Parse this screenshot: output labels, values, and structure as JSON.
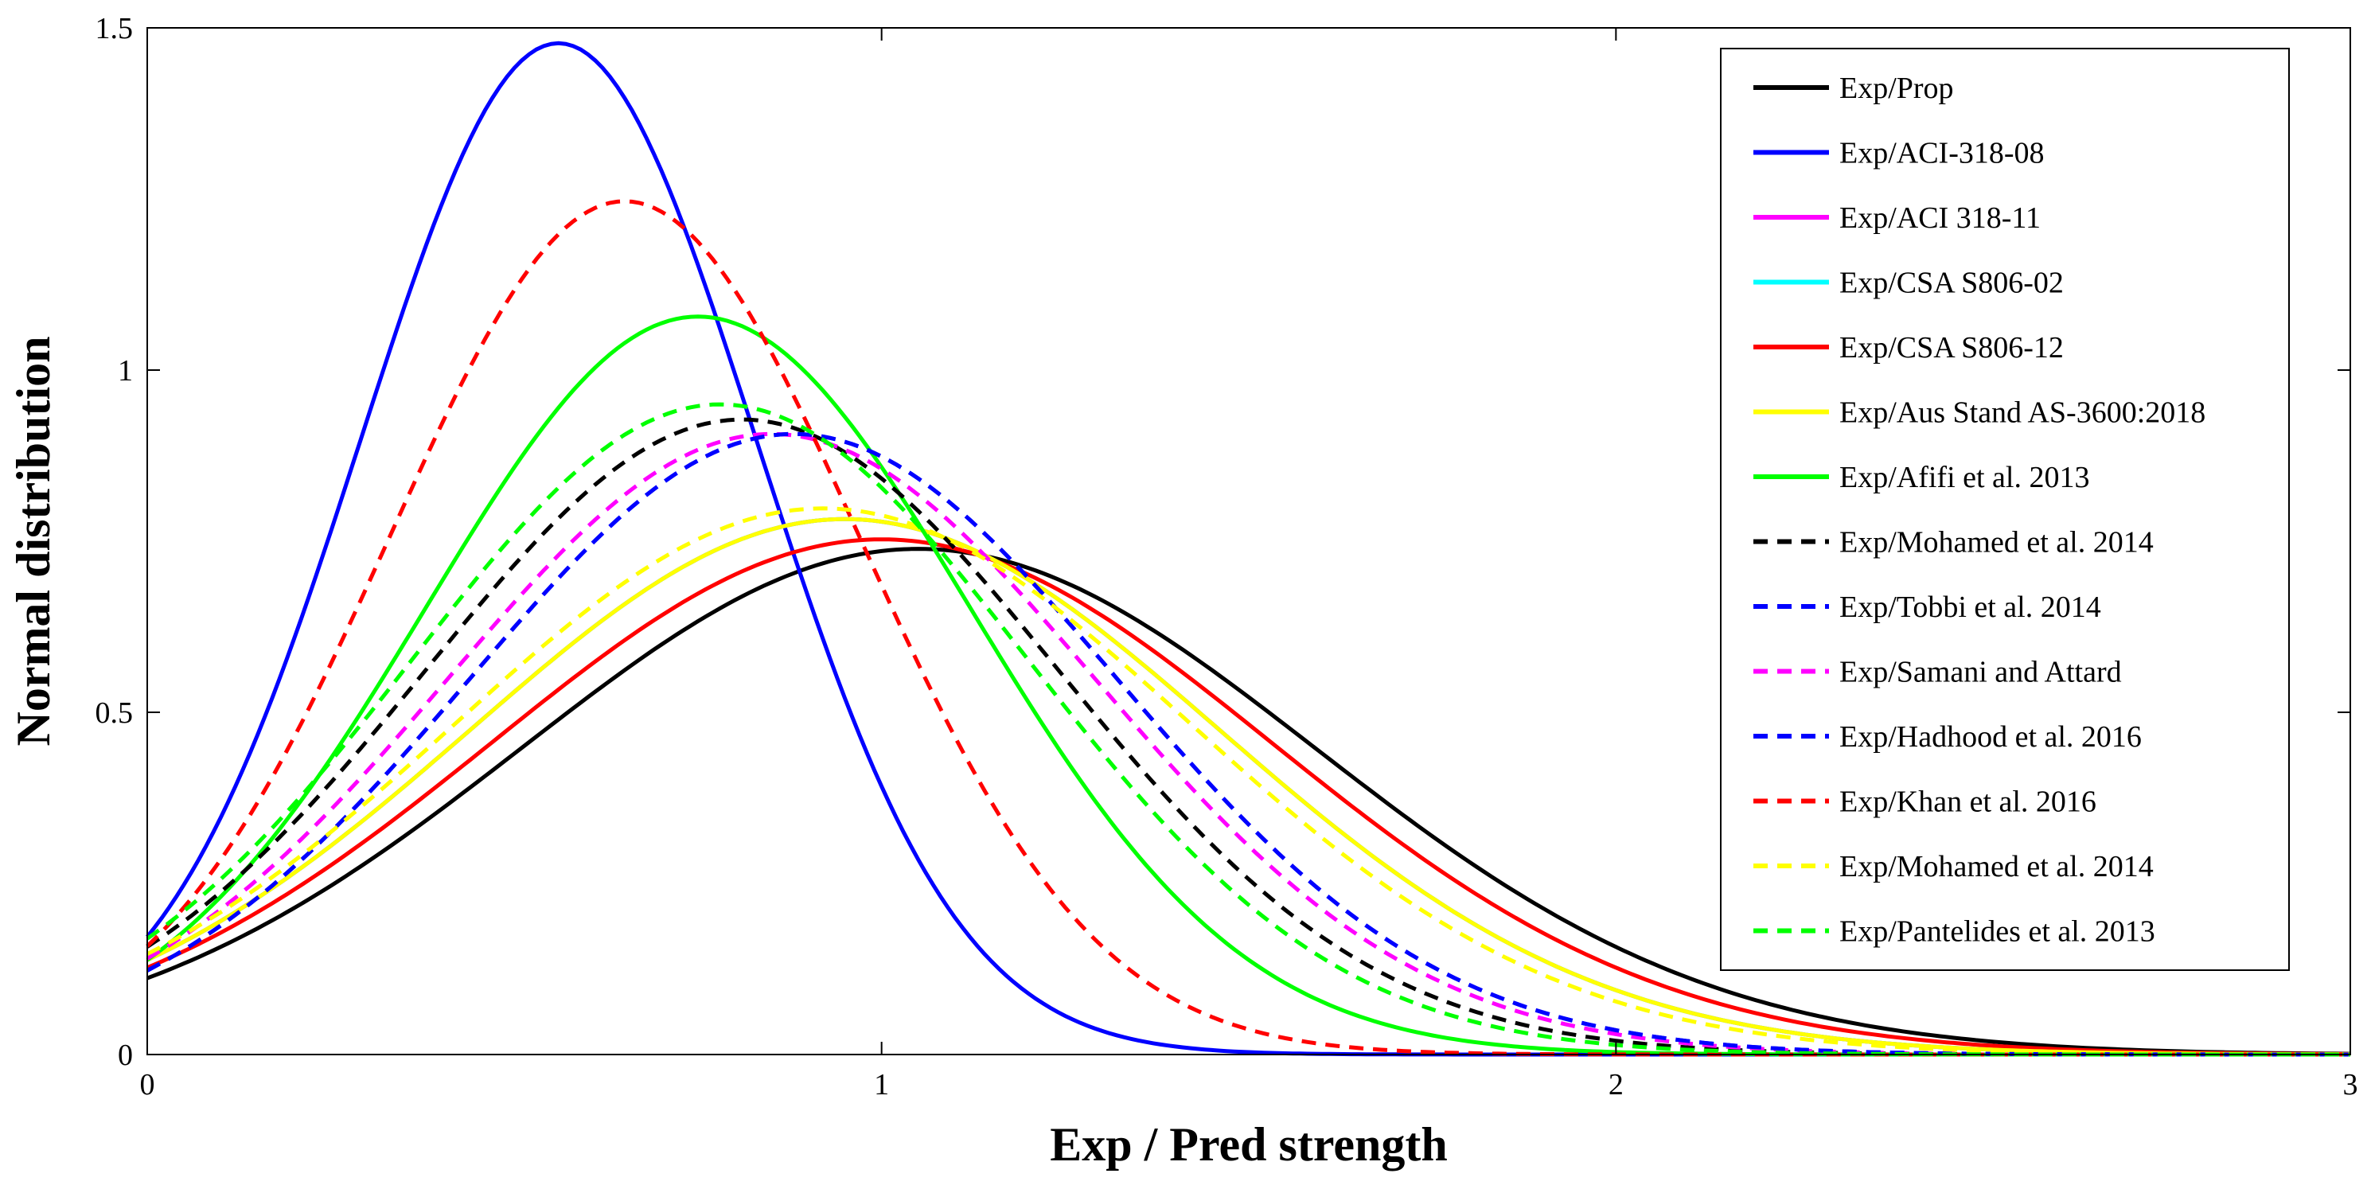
{
  "chart_data": {
    "type": "line",
    "title": "",
    "xlabel": "Exp / Pred strength",
    "ylabel": "Normal distribution",
    "xlim": [
      0,
      3
    ],
    "ylim": [
      0,
      1.5
    ],
    "xticks": [
      0,
      1,
      2,
      3
    ],
    "xtick_labels": [
      "0",
      "1",
      "2",
      "3"
    ],
    "yticks": [
      0,
      0.5,
      1,
      1.5
    ],
    "ytick_labels": [
      "0",
      "0.5",
      "1",
      "1.5"
    ],
    "grid": false,
    "legend_position": "top-right",
    "curve_kind": "normal pdf (mean, std)",
    "series": [
      {
        "name": "Exp/Prop",
        "color": "#000000",
        "dash": "solid",
        "mean": 1.05,
        "std": 0.54
      },
      {
        "name": "Exp/ACI-318-08",
        "color": "#0000ff",
        "dash": "solid",
        "mean": 0.56,
        "std": 0.27
      },
      {
        "name": "Exp/ACI 318-11",
        "color": "#ff00ff",
        "dash": "solid",
        "mean": 0.95,
        "std": 0.51
      },
      {
        "name": "Exp/CSA S806-02",
        "color": "#00ffff",
        "dash": "solid",
        "mean": 0.95,
        "std": 0.51
      },
      {
        "name": "Exp/CSA S806-12",
        "color": "#ff0000",
        "dash": "solid",
        "mean": 1.0,
        "std": 0.53
      },
      {
        "name": "Exp/Aus Stand AS-3600:2018",
        "color": "#ffff00",
        "dash": "solid",
        "mean": 0.95,
        "std": 0.51
      },
      {
        "name": "Exp/Afifi et al. 2013",
        "color": "#00ff00",
        "dash": "solid",
        "mean": 0.75,
        "std": 0.37
      },
      {
        "name": "Exp/Mohamed et al. 2014",
        "color": "#000000",
        "dash": "dashed",
        "mean": 0.81,
        "std": 0.43
      },
      {
        "name": "Exp/Tobbi et al. 2014",
        "color": "#0000ff",
        "dash": "dashed",
        "mean": 0.88,
        "std": 0.44
      },
      {
        "name": "Exp/Samani and Attard",
        "color": "#ff00ff",
        "dash": "dashed",
        "mean": 0.85,
        "std": 0.44
      },
      {
        "name": "Exp/Hadhood et al. 2016",
        "color": "#0000ff",
        "dash": "dashed",
        "mean": 0.88,
        "std": 0.44
      },
      {
        "name": "Exp/Khan et al. 2016",
        "color": "#ff0000",
        "dash": "dashed",
        "mean": 0.65,
        "std": 0.32
      },
      {
        "name": "Exp/Mohamed et al. 2014",
        "color": "#ffff00",
        "dash": "dashed",
        "mean": 0.92,
        "std": 0.5
      },
      {
        "name": "Exp/Pantelides et al. 2013",
        "color": "#00ff00",
        "dash": "dashed",
        "mean": 0.78,
        "std": 0.42
      }
    ]
  }
}
